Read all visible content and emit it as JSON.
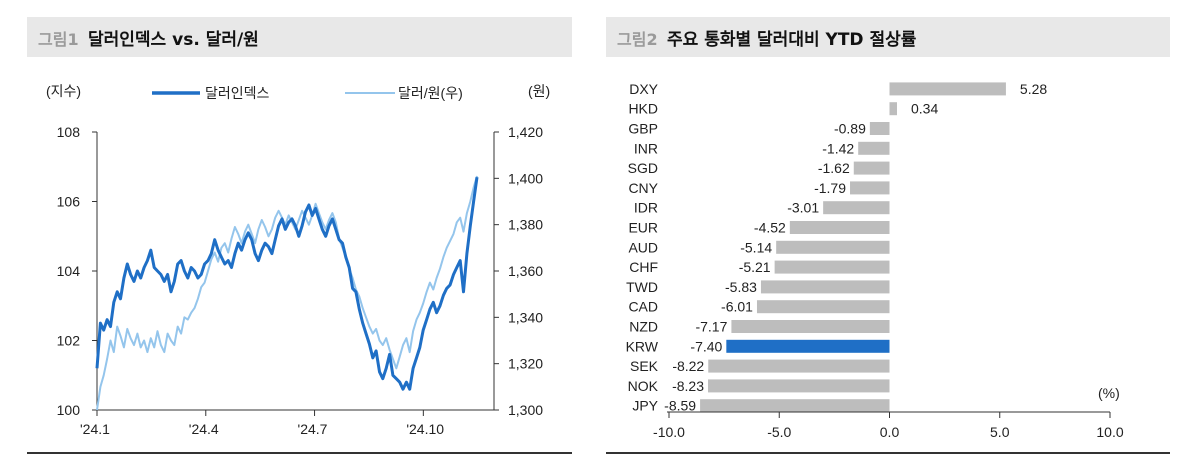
{
  "figure1": {
    "tag": "그림1",
    "title": "달러인덱스 vs. 달러/원",
    "chart_data": {
      "type": "line",
      "left_unit": "(지수)",
      "right_unit": "(원)",
      "x_ticks": [
        "'24.1",
        "'24.4",
        "'24.7",
        "'24.10"
      ],
      "y_left": {
        "min": 100,
        "max": 108,
        "ticks": [
          "100",
          "102",
          "104",
          "106",
          "108"
        ]
      },
      "y_right": {
        "min": 1300,
        "max": 1420,
        "ticks": [
          "1,300",
          "1,320",
          "1,340",
          "1,360",
          "1,380",
          "1,400",
          "1,420"
        ]
      },
      "colors": {
        "dxy": "#1f6fc6",
        "krw": "#94c5ec"
      },
      "series": [
        {
          "name": "달러인덱스",
          "axis": "left",
          "values": [
            101.2,
            102.5,
            102.3,
            102.6,
            102.4,
            103.1,
            103.4,
            103.2,
            103.8,
            104.2,
            103.9,
            103.7,
            104.0,
            103.8,
            104.1,
            104.3,
            104.6,
            104.1,
            104.0,
            103.9,
            103.7,
            103.9,
            103.4,
            103.7,
            104.2,
            104.3,
            104.0,
            103.8,
            104.1,
            104.0,
            103.8,
            103.9,
            104.2,
            104.3,
            104.5,
            104.9,
            104.6,
            104.4,
            104.2,
            104.3,
            104.1,
            104.5,
            104.8,
            104.6,
            104.9,
            105.1,
            104.9,
            104.5,
            104.3,
            104.6,
            104.8,
            104.7,
            104.5,
            104.9,
            105.3,
            105.5,
            105.2,
            105.4,
            105.5,
            105.3,
            105.0,
            105.3,
            105.7,
            105.9,
            105.6,
            105.8,
            105.5,
            105.2,
            105.0,
            105.3,
            105.5,
            105.2,
            104.9,
            104.8,
            104.4,
            104.1,
            103.5,
            103.4,
            102.9,
            102.5,
            102.2,
            101.9,
            101.5,
            101.7,
            101.1,
            100.9,
            101.2,
            101.6,
            101.0,
            100.9,
            100.8,
            100.6,
            100.8,
            100.6,
            101.2,
            101.5,
            101.8,
            102.3,
            102.6,
            102.9,
            103.1,
            102.8,
            103.0,
            103.3,
            103.5,
            103.6,
            103.9,
            104.1,
            104.3,
            103.4,
            104.5,
            105.3,
            106.0,
            106.7
          ]
        },
        {
          "name": "달러/원(우)",
          "axis": "right",
          "values": [
            1300,
            1310,
            1315,
            1322,
            1330,
            1325,
            1336,
            1332,
            1327,
            1335,
            1331,
            1328,
            1333,
            1327,
            1330,
            1325,
            1331,
            1327,
            1334,
            1328,
            1325,
            1333,
            1330,
            1328,
            1336,
            1333,
            1340,
            1339,
            1342,
            1344,
            1348,
            1353,
            1355,
            1360,
            1365,
            1368,
            1364,
            1370,
            1372,
            1368,
            1374,
            1379,
            1376,
            1372,
            1377,
            1380,
            1376,
            1372,
            1378,
            1382,
            1379,
            1375,
            1378,
            1383,
            1386,
            1383,
            1380,
            1384,
            1381,
            1378,
            1382,
            1386,
            1383,
            1380,
            1384,
            1389,
            1385,
            1381,
            1378,
            1382,
            1385,
            1381,
            1374,
            1370,
            1366,
            1361,
            1357,
            1352,
            1349,
            1344,
            1340,
            1336,
            1333,
            1335,
            1330,
            1328,
            1331,
            1326,
            1322,
            1318,
            1323,
            1328,
            1331,
            1325,
            1334,
            1339,
            1342,
            1346,
            1351,
            1355,
            1352,
            1357,
            1361,
            1366,
            1370,
            1373,
            1376,
            1381,
            1383,
            1377,
            1385,
            1390,
            1396,
            1401
          ]
        }
      ]
    }
  },
  "figure2": {
    "tag": "그림2",
    "title": "주요 통화별 달러대비 YTD 절상률",
    "chart_data": {
      "type": "bar",
      "orientation": "horizontal",
      "unit_label": "(%)",
      "xlim": [
        -10,
        10
      ],
      "x_ticks": [
        "-10.0",
        "-5.0",
        "0.0",
        "5.0",
        "10.0"
      ],
      "bar_color": "#bdbdbd",
      "highlight_color": "#1f6fc6",
      "highlight": "KRW",
      "categories": [
        "DXY",
        "HKD",
        "GBP",
        "INR",
        "SGD",
        "CNY",
        "IDR",
        "EUR",
        "AUD",
        "CHF",
        "TWD",
        "CAD",
        "NZD",
        "KRW",
        "SEK",
        "NOK",
        "JPY"
      ],
      "values": [
        5.28,
        0.34,
        -0.89,
        -1.42,
        -1.62,
        -1.79,
        -3.01,
        -4.52,
        -5.14,
        -5.21,
        -5.83,
        -6.01,
        -7.17,
        -7.4,
        -8.22,
        -8.23,
        -8.59
      ],
      "value_labels": [
        "5.28",
        "0.34",
        "-0.89",
        "-1.42",
        "-1.62",
        "-1.79",
        "-3.01",
        "-4.52",
        "-5.14",
        "-5.21",
        "-5.83",
        "-6.01",
        "-7.17",
        "-7.40",
        "-8.22",
        "-8.23",
        "-8.59"
      ]
    }
  }
}
